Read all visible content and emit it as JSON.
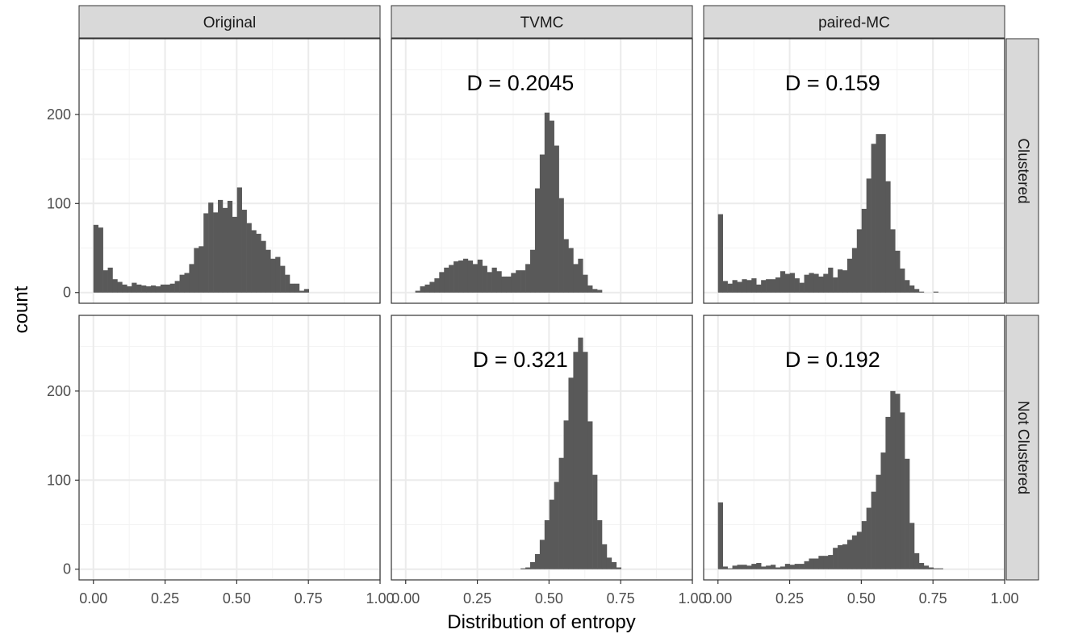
{
  "chart_data": {
    "type": "histogram-facet-grid",
    "xlabel": "Distribution of entropy",
    "ylabel": "count",
    "columns": [
      "Original",
      "TVMC",
      "paired-MC"
    ],
    "rows": [
      "Clustered",
      "Not Clustered"
    ],
    "x_ticks": [
      "0.00",
      "0.25",
      "0.50",
      "0.75",
      "1.00"
    ],
    "x_tick_values": [
      0,
      0.25,
      0.5,
      0.75,
      1.0
    ],
    "y_ticks": [
      "0",
      "100",
      "200"
    ],
    "y_tick_values": [
      0,
      100,
      200
    ],
    "xlim": [
      -0.05,
      1.0
    ],
    "ylim": [
      -12,
      285
    ],
    "bin_start": 0.0,
    "bin_width": 0.0167,
    "colors": {
      "bar": "#595959",
      "panel_border": "#333333",
      "grid": "#ebebeb",
      "strip": "#d9d9d9"
    },
    "panels": [
      {
        "column": "Original",
        "row": "Clustered",
        "annotation": "",
        "values": [
          76,
          73,
          25,
          28,
          15,
          12,
          9,
          7,
          11,
          9,
          8,
          7,
          8,
          7,
          9,
          9,
          10,
          13,
          20,
          22,
          32,
          50,
          52,
          89,
          101,
          90,
          104,
          95,
          103,
          85,
          118,
          93,
          78,
          70,
          66,
          58,
          48,
          38,
          40,
          30,
          20,
          10,
          10,
          2,
          4
        ]
      },
      {
        "column": "TVMC",
        "row": "Clustered",
        "annotation": "D = 0.2045",
        "values": [
          0,
          0,
          2,
          7,
          9,
          12,
          16,
          23,
          28,
          31,
          35,
          36,
          38,
          36,
          32,
          37,
          30,
          23,
          28,
          24,
          18,
          18,
          22,
          25,
          25,
          32,
          48,
          117,
          155,
          202,
          193,
          165,
          106,
          60,
          50,
          32,
          38,
          20,
          8,
          4,
          3
        ]
      },
      {
        "column": "paired-MC",
        "row": "Clustered",
        "annotation": "D = 0.159",
        "values": [
          88,
          13,
          10,
          14,
          12,
          15,
          14,
          16,
          9,
          14,
          15,
          15,
          17,
          24,
          21,
          22,
          16,
          11,
          20,
          22,
          21,
          18,
          21,
          28,
          17,
          26,
          25,
          38,
          50,
          71,
          94,
          128,
          167,
          178,
          178,
          125,
          71,
          47,
          27,
          14,
          8,
          4,
          1,
          0,
          0,
          1
        ]
      },
      {
        "column": "Original",
        "row": "Not Clustered",
        "annotation": "",
        "values": []
      },
      {
        "column": "TVMC",
        "row": "Not Clustered",
        "annotation": "D = 0.321",
        "values": [
          0,
          0,
          0,
          0,
          0,
          0,
          0,
          0,
          0,
          0,
          0,
          0,
          0,
          0,
          0,
          0,
          0,
          0,
          0,
          0,
          0,
          0,
          0,
          0,
          1,
          2,
          8,
          17,
          33,
          55,
          78,
          98,
          125,
          167,
          215,
          244,
          260,
          244,
          166,
          106,
          55,
          28,
          13,
          8,
          2
        ]
      },
      {
        "column": "paired-MC",
        "row": "Not Clustered",
        "annotation": "D = 0.192",
        "values": [
          75,
          3,
          1,
          4,
          5,
          5,
          4,
          6,
          7,
          3,
          4,
          5,
          2,
          3,
          6,
          5,
          6,
          6,
          9,
          12,
          12,
          15,
          15,
          16,
          24,
          27,
          28,
          33,
          38,
          42,
          54,
          69,
          87,
          106,
          131,
          171,
          200,
          197,
          176,
          124,
          52,
          18,
          7,
          4,
          2,
          1,
          1
        ]
      }
    ]
  }
}
